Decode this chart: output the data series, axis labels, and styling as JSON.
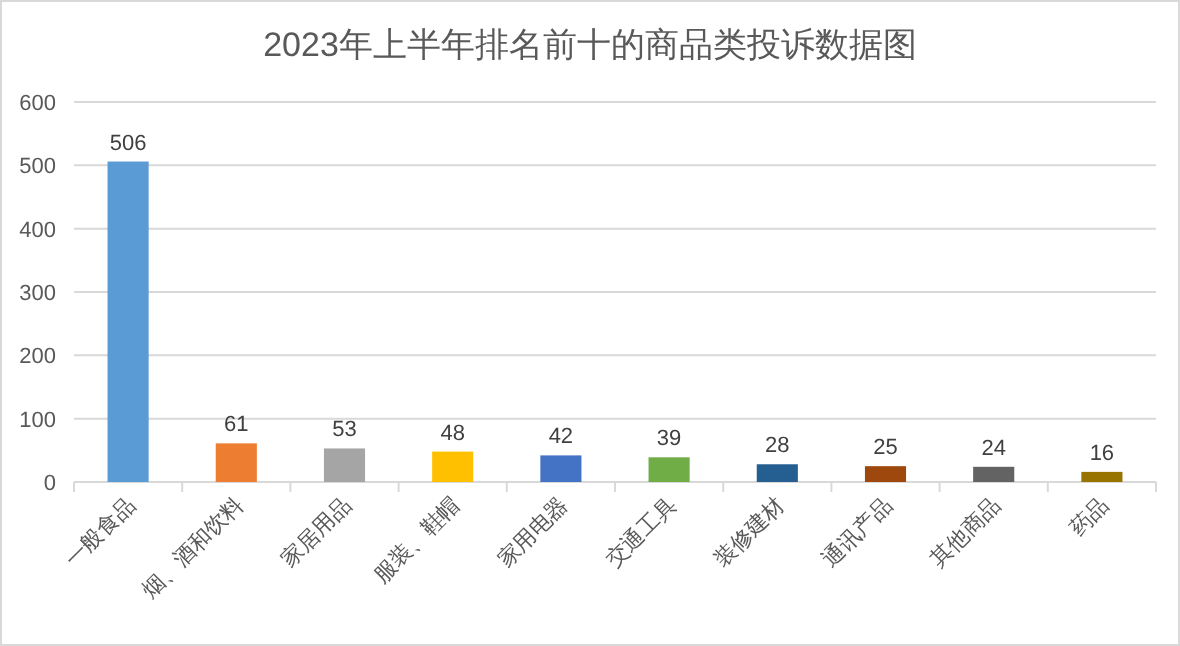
{
  "chart_data": {
    "type": "bar",
    "title": "2023年上半年排名前十的商品类投诉数据图",
    "categories": [
      "一般食品",
      "烟、酒和饮料",
      "家居用品",
      "服装、鞋帽",
      "家用电器",
      "交通工具",
      "装修建材",
      "通讯产品",
      "其他商品",
      "药品"
    ],
    "values": [
      506,
      61,
      53,
      48,
      42,
      39,
      28,
      25,
      24,
      16
    ],
    "colors": [
      "#5b9bd5",
      "#ed7d31",
      "#a5a5a5",
      "#ffc000",
      "#4472c4",
      "#70ad47",
      "#255e91",
      "#9e480e",
      "#636363",
      "#997300"
    ],
    "ylim": [
      0,
      600
    ],
    "yticks": [
      0,
      100,
      200,
      300,
      400,
      500,
      600
    ],
    "grid": "y",
    "data_labels": true
  }
}
